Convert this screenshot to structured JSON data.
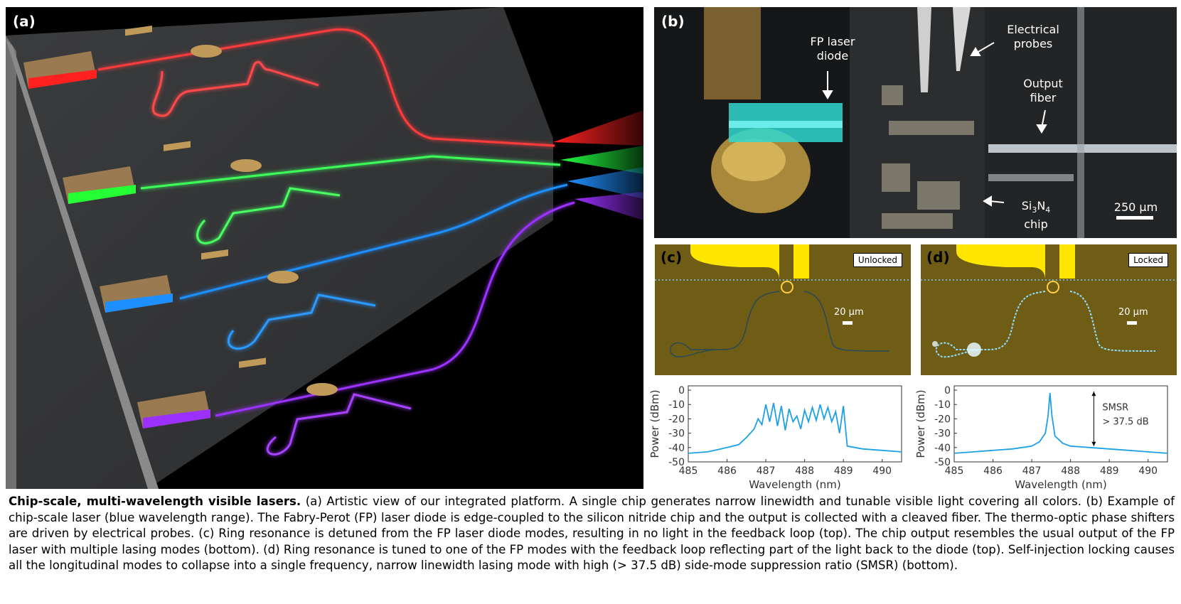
{
  "panel_a": {
    "label": "(a)"
  },
  "panel_b": {
    "label": "(b)",
    "annotations": {
      "laser_line1": "FP laser",
      "laser_line2": "diode",
      "probes_line1": "Electrical",
      "probes_line2": "probes",
      "fiber_line1": "Output",
      "fiber_line2": "fiber",
      "chip_prefix": "Si",
      "chip_sub1": "3",
      "chip_mid": "N",
      "chip_sub2": "4",
      "chip_line2": "chip"
    },
    "scale_bar": "250 µm"
  },
  "panel_c": {
    "label": "(c)",
    "state": "Unlocked",
    "scale_bar": "20 µm"
  },
  "panel_d": {
    "label": "(d)",
    "state": "Locked",
    "scale_bar": "20 µm"
  },
  "chart_data": [
    {
      "type": "line",
      "panel": "c",
      "xlabel": "Wavelength (nm)",
      "ylabel": "Power (dBm)",
      "xlim": [
        485,
        490.5
      ],
      "ylim": [
        -50,
        3
      ],
      "xticks": [
        "485",
        "486",
        "487",
        "488",
        "489",
        "490"
      ],
      "yticks": [
        "0",
        "-10",
        "-20",
        "-30",
        "-40",
        "-50"
      ],
      "x": [
        485.0,
        485.5,
        486.0,
        486.3,
        486.5,
        486.6,
        486.7,
        486.8,
        486.9,
        487.0,
        487.1,
        487.2,
        487.3,
        487.4,
        487.5,
        487.6,
        487.7,
        487.8,
        487.9,
        488.0,
        488.1,
        488.2,
        488.3,
        488.4,
        488.5,
        488.6,
        488.7,
        488.8,
        488.9,
        489.0,
        489.1,
        489.5,
        490.0,
        490.5
      ],
      "y": [
        -44,
        -43,
        -40,
        -38,
        -33,
        -30,
        -27,
        -20,
        -24,
        -10,
        -22,
        -9,
        -25,
        -11,
        -28,
        -13,
        -22,
        -18,
        -27,
        -14,
        -22,
        -12,
        -21,
        -10,
        -20,
        -12,
        -22,
        -15,
        -30,
        -11,
        -39,
        -41,
        -42,
        -43
      ]
    },
    {
      "type": "line",
      "panel": "d",
      "xlabel": "Wavelength (nm)",
      "ylabel": "Power (dBm)",
      "xlim": [
        485,
        490.5
      ],
      "ylim": [
        -50,
        3
      ],
      "xticks": [
        "485",
        "486",
        "487",
        "488",
        "489",
        "490"
      ],
      "yticks": [
        "0",
        "-10",
        "-20",
        "-30",
        "-40",
        "-50"
      ],
      "x": [
        485.0,
        485.5,
        486.0,
        486.5,
        487.0,
        487.2,
        487.35,
        487.42,
        487.47,
        487.52,
        487.6,
        487.8,
        488.0,
        488.5,
        489.0,
        489.5,
        490.0,
        490.5
      ],
      "y": [
        -44,
        -43,
        -42,
        -41,
        -39,
        -36,
        -30,
        -18,
        -2,
        -18,
        -32,
        -37,
        -39,
        -40,
        -41,
        -42,
        -43,
        -44
      ],
      "annotation_line1": "SMSR",
      "annotation_line2": "> 37.5 dB"
    }
  ],
  "caption": {
    "bold": "Chip-scale, multi-wavelength visible lasers.",
    "text": " (a) Artistic view of our integrated platform. A single chip generates narrow linewidth and tunable visible light covering all colors. (b) Example of chip-scale laser (blue wavelength range). The Fabry-Perot (FP) laser diode is edge-coupled to the silicon nitride chip and the output is collected with a cleaved fiber. The thermo-optic phase shifters are driven by electrical probes. (c) Ring resonance is detuned from the FP laser diode modes, resulting in no light in the feedback loop (top). The chip output resembles the usual output of the FP laser with multiple lasing modes (bottom). (d) Ring resonance is tuned to one of the FP modes with the feedback loop reflecting part of the light back to the diode (top). Self-injection locking causes all the longitudinal modes to collapse into a single frequency, narrow linewidth lasing mode with high (> 37.5 dB) side-mode suppression ratio (SMSR) (bottom)."
  },
  "colors": {
    "red": "#ff3b3b",
    "green": "#3dff5a",
    "blue": "#1e90ff",
    "violet": "#9b30ff",
    "gold": "#c8a060",
    "spectrum": "#1ea0e6"
  }
}
